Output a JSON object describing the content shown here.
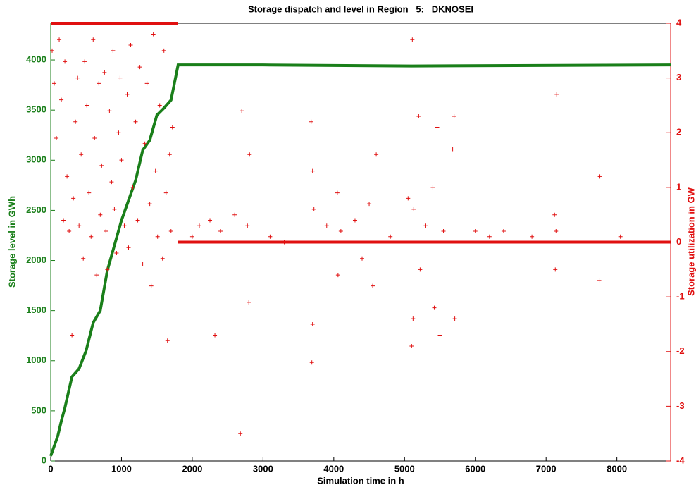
{
  "chart_data": {
    "type": "combo",
    "title": "Storage dispatch and level in Region   5:   DKNOSEI",
    "x_label": "Simulation time in h",
    "y_label": "Storage level in GWh",
    "y2_label": "Storage utilization in GW",
    "y_color": "#1a7f1a",
    "y2_color": "#e01010",
    "xlim": [
      0,
      8760
    ],
    "xticks": [
      0,
      1000,
      2000,
      3000,
      4000,
      5000,
      6000,
      7000,
      8000
    ],
    "ylim": [
      0,
      4366
    ],
    "yticks": [
      0,
      500,
      1000,
      1500,
      2000,
      2500,
      3000,
      3500,
      4000
    ],
    "y2lim": [
      -4,
      4
    ],
    "y2ticks": [
      -4,
      -3,
      -2,
      -1,
      0,
      1,
      2,
      3,
      4
    ],
    "series": [
      {
        "type": "line",
        "axis": "y",
        "color": "#1a7f1a",
        "x": [
          0,
          50,
          100,
          150,
          200,
          300,
          400,
          500,
          600,
          700,
          800,
          900,
          1000,
          1100,
          1200,
          1300,
          1400,
          1500,
          1600,
          1700,
          1800,
          3000,
          5100,
          8760
        ],
        "values": [
          50,
          150,
          250,
          400,
          530,
          840,
          920,
          1100,
          1380,
          1500,
          1900,
          2150,
          2400,
          2600,
          2800,
          3100,
          3200,
          3450,
          3520,
          3600,
          3950,
          3950,
          3940,
          3950
        ]
      },
      {
        "type": "line",
        "axis": "y2",
        "color": "#e01010",
        "x": [
          0,
          1800
        ],
        "values": [
          4,
          4
        ]
      },
      {
        "type": "line",
        "axis": "y2",
        "color": "#e01010",
        "x": [
          1800,
          8760
        ],
        "values": [
          0,
          0
        ]
      },
      {
        "type": "scatter",
        "axis": "y2",
        "color": "#e01010",
        "x": [
          20,
          50,
          80,
          120,
          150,
          180,
          200,
          230,
          260,
          300,
          320,
          350,
          380,
          400,
          430,
          460,
          480,
          510,
          540,
          570,
          600,
          620,
          650,
          680,
          700,
          720,
          760,
          780,
          800,
          830,
          860,
          880,
          900,
          930,
          960,
          980,
          1000,
          1040,
          1080,
          1100,
          1130,
          1160,
          1200,
          1230,
          1260,
          1300,
          1330,
          1360,
          1400,
          1420,
          1450,
          1480,
          1510,
          1540,
          1580,
          1600,
          1630,
          1650,
          1680,
          1700,
          1720,
          2000,
          2100,
          2250,
          2320,
          2400,
          2600,
          2680,
          2700,
          2780,
          2800,
          2810,
          3100,
          3300,
          3680,
          3690,
          3700,
          3700,
          3720,
          3900,
          4050,
          4060,
          4100,
          4300,
          4400,
          4500,
          4550,
          4600,
          4800,
          5050,
          5100,
          5110,
          5120,
          5130,
          5200,
          5220,
          5300,
          5400,
          5420,
          5460,
          5500,
          5550,
          5680,
          5700,
          5710,
          6000,
          6200,
          6400,
          6800,
          7120,
          7130,
          7150,
          7140,
          7750,
          7760,
          8050
        ],
        "values": [
          3.5,
          2.9,
          1.9,
          3.7,
          2.6,
          0.4,
          3.3,
          1.2,
          0.2,
          -1.7,
          0.8,
          2.2,
          3.0,
          0.3,
          1.6,
          -0.3,
          3.3,
          2.5,
          0.9,
          0.1,
          3.7,
          1.9,
          -0.6,
          2.9,
          0.5,
          1.4,
          3.1,
          0.2,
          -0.5,
          2.4,
          1.1,
          3.5,
          0.6,
          -0.2,
          2.0,
          3.0,
          1.5,
          0.3,
          2.7,
          -0.1,
          3.6,
          1.0,
          2.2,
          0.4,
          3.2,
          -0.4,
          1.8,
          2.9,
          0.7,
          -0.8,
          3.8,
          1.3,
          0.1,
          2.5,
          -0.3,
          3.5,
          0.9,
          -1.8,
          1.6,
          0.2,
          2.1,
          0.1,
          0.3,
          0.4,
          -1.7,
          0.2,
          0.5,
          -3.5,
          2.4,
          0.3,
          -1.1,
          1.6,
          0.1,
          0.0,
          2.2,
          -2.2,
          1.3,
          -1.5,
          0.6,
          0.3,
          0.9,
          -0.6,
          0.2,
          0.4,
          -0.3,
          0.7,
          -0.8,
          1.6,
          0.1,
          0.8,
          -1.9,
          3.7,
          -1.4,
          0.6,
          2.3,
          -0.5,
          0.3,
          1.0,
          -1.2,
          2.1,
          -1.7,
          0.2,
          1.7,
          2.3,
          -1.4,
          0.2,
          0.1,
          0.2,
          0.1,
          0.5,
          -0.5,
          2.7,
          0.2,
          -0.7,
          1.2,
          0.1
        ]
      }
    ]
  }
}
